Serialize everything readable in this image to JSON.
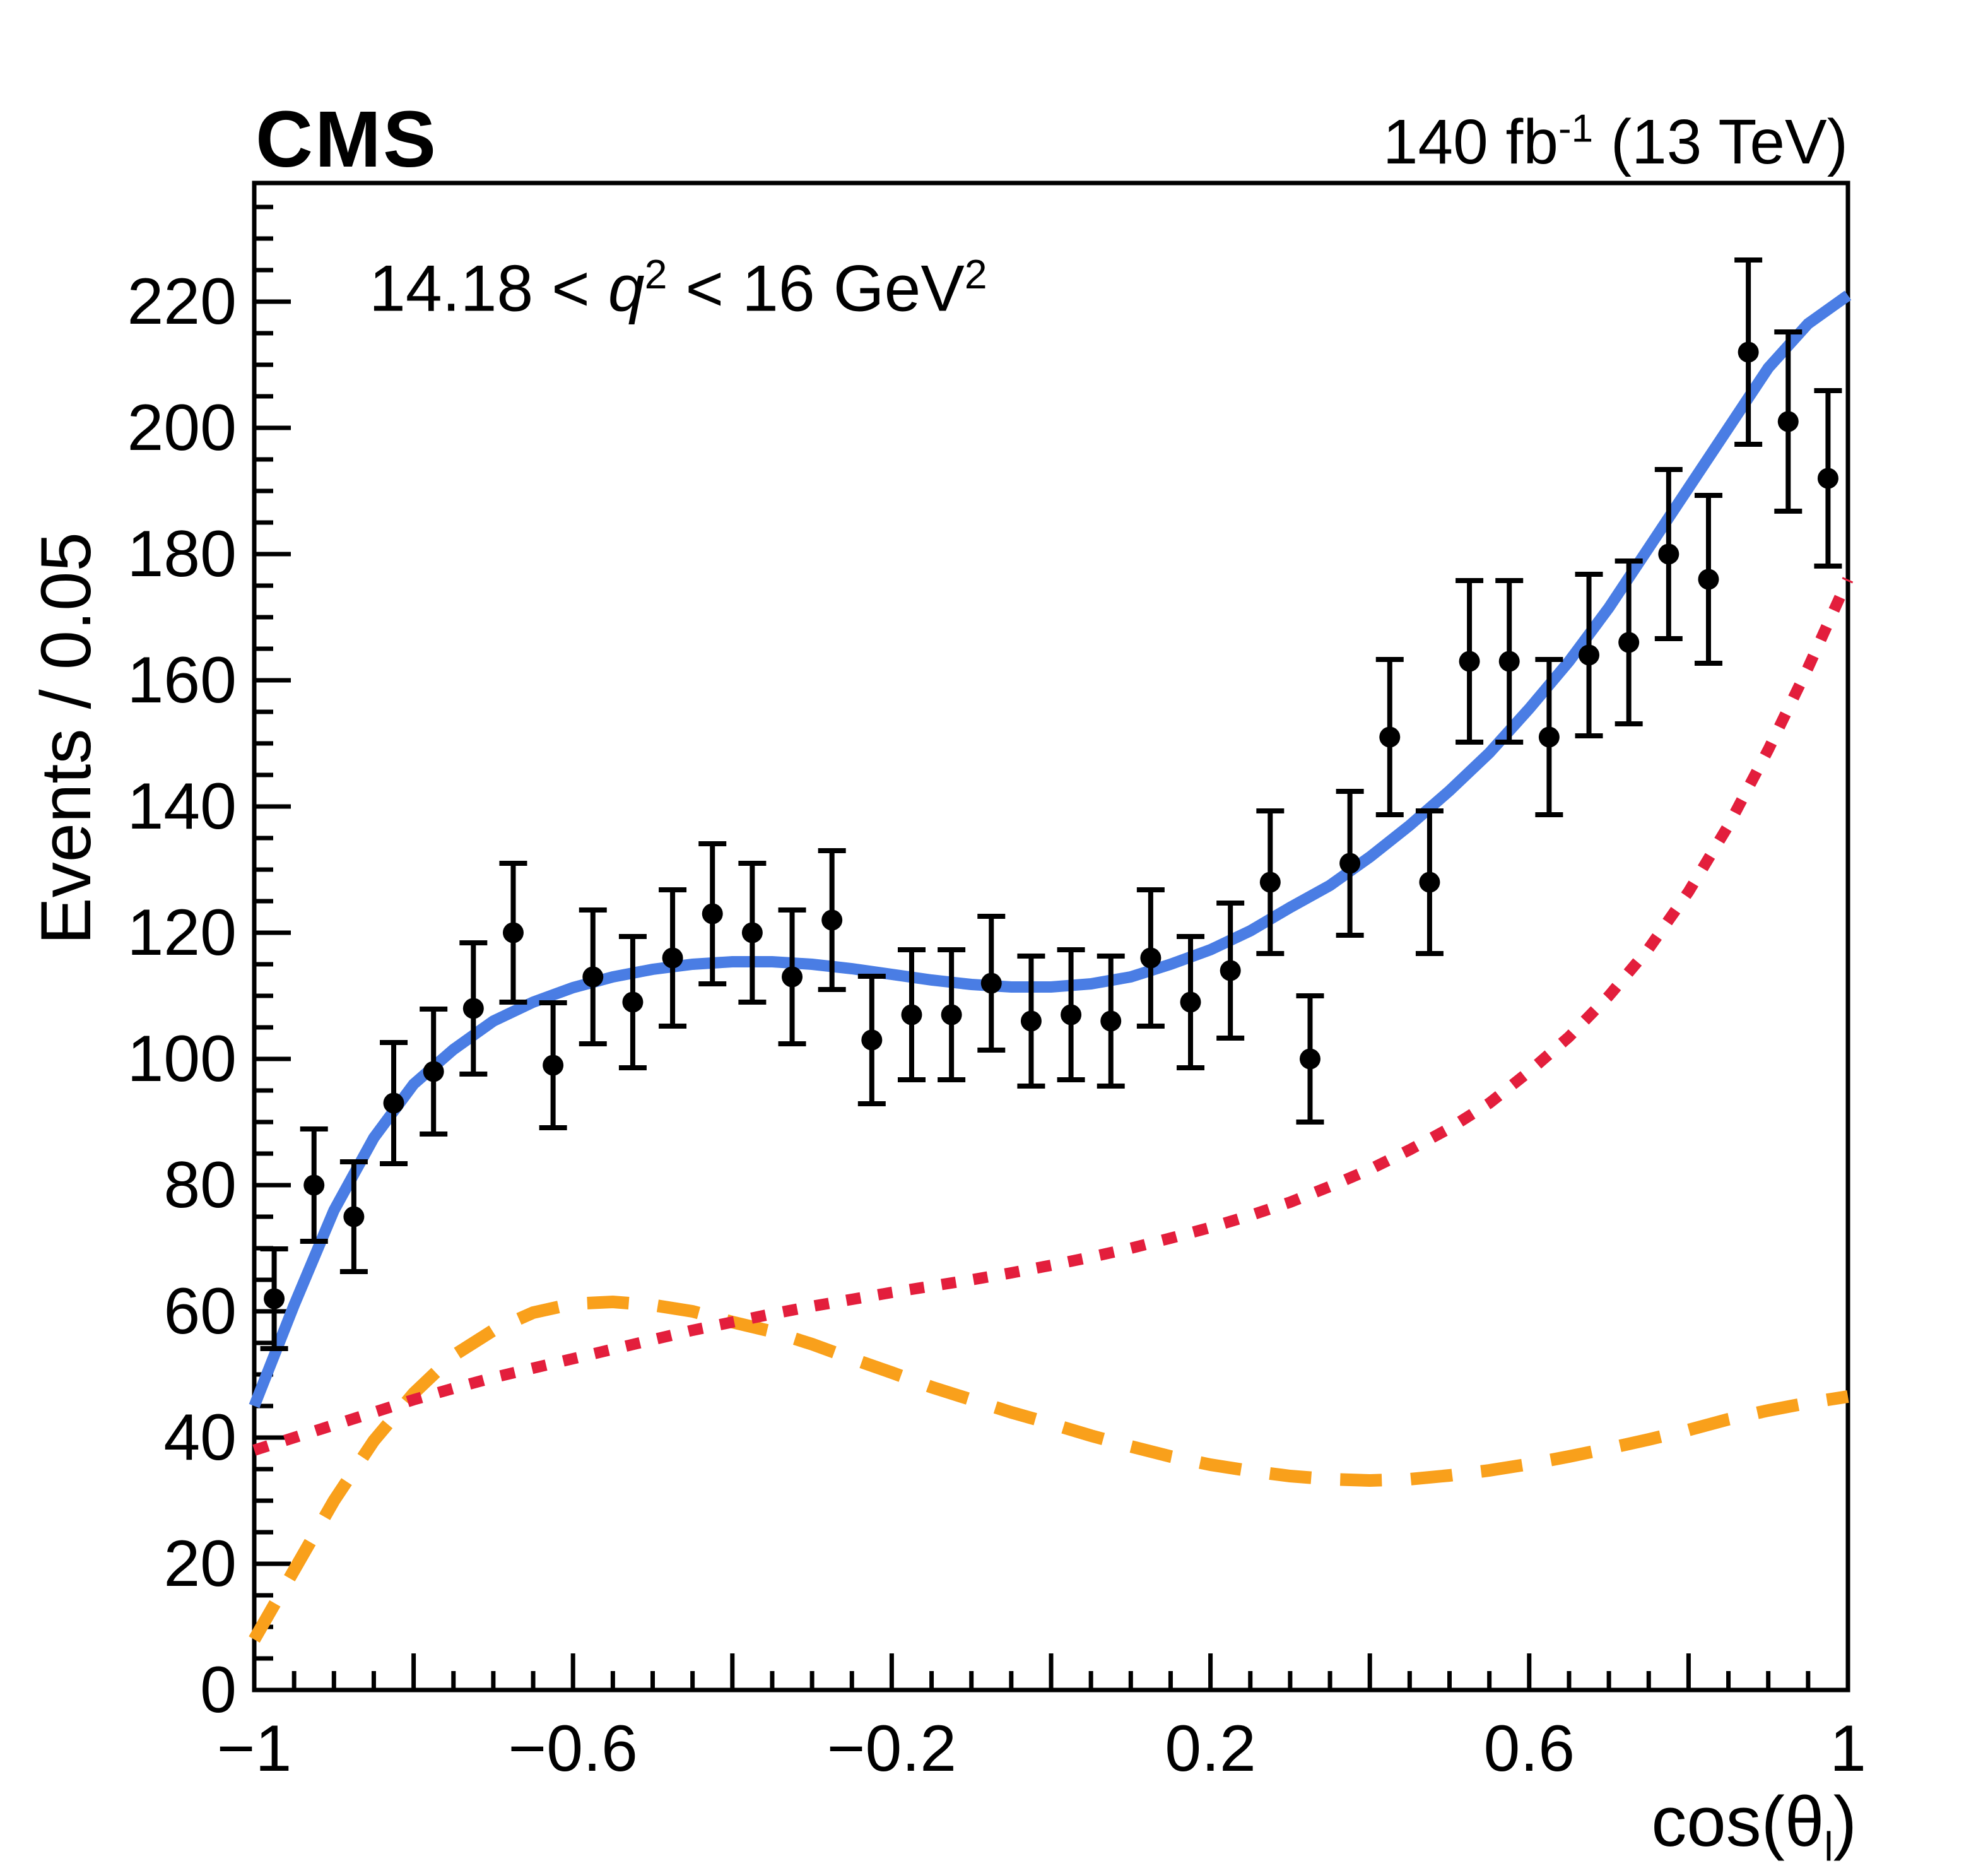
{
  "header": {
    "cms": "CMS",
    "lumi_prefix": "140 fb",
    "lumi_sup": "-1",
    "lumi_suffix": " (13 TeV)"
  },
  "annotation": {
    "pre": "14.18 < ",
    "q": "q",
    "q_sup": "2",
    "mid": " < 16 GeV",
    "gev_sup": "2"
  },
  "axes": {
    "y_title": "Events / 0.05",
    "x_title_pre": "cos(θ",
    "x_title_sub": "l",
    "x_title_post": ")"
  },
  "chart_data": {
    "type": "scatter",
    "title": "",
    "xlabel": "cos(theta_l)",
    "ylabel": "Events / 0.05",
    "xlim": [
      -1,
      1
    ],
    "ylim": [
      0,
      238.8
    ],
    "grid": false,
    "legend": "none",
    "bin_width": 0.05,
    "x_ticks": {
      "major_step": 0.2,
      "minor_step": 0.05,
      "label_values": [
        -1,
        -0.6,
        -0.2,
        0.2,
        0.6,
        1
      ],
      "labels": [
        "−1",
        "−0.6",
        "−0.2",
        "0.2",
        "0.6",
        "1"
      ]
    },
    "y_ticks": {
      "major_step": 20,
      "minor_step": 5,
      "label_values": [
        0,
        20,
        40,
        60,
        80,
        100,
        120,
        140,
        160,
        180,
        200,
        220
      ],
      "labels": [
        "0",
        "20",
        "40",
        "60",
        "80",
        "100",
        "120",
        "140",
        "160",
        "180",
        "200",
        "220"
      ]
    },
    "points": {
      "name": "data",
      "color": "#000000",
      "x": [
        -0.975,
        -0.925,
        -0.875,
        -0.825,
        -0.775,
        -0.725,
        -0.675,
        -0.625,
        -0.575,
        -0.525,
        -0.475,
        -0.425,
        -0.375,
        -0.325,
        -0.275,
        -0.225,
        -0.175,
        -0.125,
        -0.075,
        -0.025,
        0.025,
        0.075,
        0.125,
        0.175,
        0.225,
        0.275,
        0.325,
        0.375,
        0.425,
        0.475,
        0.525,
        0.575,
        0.625,
        0.675,
        0.725,
        0.775,
        0.825,
        0.875,
        0.925,
        0.975
      ],
      "y": [
        62,
        80,
        75,
        93,
        98,
        108,
        120,
        99,
        113,
        109,
        116,
        123,
        120,
        113,
        122,
        103,
        107,
        107,
        112,
        106,
        107,
        106,
        116,
        109,
        114,
        128,
        100,
        131,
        151,
        128,
        163,
        163,
        151,
        164,
        166,
        180,
        176,
        212,
        201,
        192
      ],
      "yerr": [
        7.9,
        8.9,
        8.7,
        9.6,
        9.9,
        10.4,
        11.0,
        9.9,
        10.6,
        10.4,
        10.8,
        11.1,
        11.0,
        10.6,
        11.0,
        10.1,
        10.3,
        10.3,
        10.6,
        10.3,
        10.3,
        10.3,
        10.8,
        10.4,
        10.7,
        11.3,
        10.0,
        11.4,
        12.3,
        11.3,
        12.8,
        12.8,
        12.3,
        12.8,
        12.9,
        13.4,
        13.3,
        14.6,
        14.2,
        13.9
      ]
    },
    "curves": [
      {
        "name": "background-component",
        "style": "dashed",
        "color": "#f9a01b",
        "x": [
          -1,
          -0.95,
          -0.9,
          -0.85,
          -0.8,
          -0.75,
          -0.7,
          -0.65,
          -0.6,
          -0.55,
          -0.5,
          -0.45,
          -0.4,
          -0.35,
          -0.3,
          -0.25,
          -0.2,
          -0.15,
          -0.1,
          -0.05,
          0,
          0.05,
          0.1,
          0.15,
          0.2,
          0.25,
          0.3,
          0.35,
          0.4,
          0.45,
          0.5,
          0.55,
          0.6,
          0.65,
          0.7,
          0.75,
          0.8,
          0.85,
          0.9,
          0.95,
          1
        ],
        "y": [
          8,
          19,
          30,
          39.5,
          47,
          53,
          57,
          59.8,
          61.2,
          61.5,
          61,
          60,
          58.3,
          56.8,
          54.8,
          52.5,
          50.3,
          48,
          46,
          44,
          42.2,
          40.3,
          38.6,
          37,
          35.7,
          34.7,
          33.9,
          33.4,
          33.2,
          33.4,
          34,
          34.8,
          35.8,
          37,
          38.3,
          39.7,
          41.2,
          42.9,
          44.3,
          45.5,
          46.5
        ]
      },
      {
        "name": "signal-component",
        "style": "dotted",
        "color": "#e31e3c",
        "x": [
          -1,
          -0.95,
          -0.9,
          -0.85,
          -0.8,
          -0.75,
          -0.7,
          -0.65,
          -0.6,
          -0.55,
          -0.5,
          -0.45,
          -0.4,
          -0.35,
          -0.3,
          -0.25,
          -0.2,
          -0.15,
          -0.1,
          -0.05,
          0,
          0.05,
          0.1,
          0.15,
          0.2,
          0.25,
          0.3,
          0.35,
          0.4,
          0.45,
          0.5,
          0.55,
          0.6,
          0.65,
          0.7,
          0.75,
          0.8,
          0.85,
          0.9,
          0.95,
          1
        ],
        "y": [
          38,
          40,
          42,
          44,
          46,
          47.8,
          49.5,
          51,
          52.5,
          54,
          55.5,
          57,
          58.3,
          59.6,
          60.8,
          61.9,
          63,
          64,
          65,
          66.1,
          67.3,
          68.6,
          70,
          71.6,
          73.3,
          75.2,
          77.3,
          79.8,
          82.5,
          85.6,
          89,
          93,
          98,
          103.5,
          110,
          117.5,
          126.5,
          137,
          149,
          162,
          176
        ]
      },
      {
        "name": "total-fit",
        "style": "solid",
        "color": "#4a7de4",
        "x": [
          -1,
          -0.95,
          -0.9,
          -0.85,
          -0.8,
          -0.75,
          -0.7,
          -0.65,
          -0.6,
          -0.55,
          -0.5,
          -0.45,
          -0.4,
          -0.35,
          -0.3,
          -0.25,
          -0.2,
          -0.15,
          -0.1,
          -0.05,
          0,
          0.05,
          0.1,
          0.15,
          0.2,
          0.25,
          0.3,
          0.35,
          0.4,
          0.45,
          0.5,
          0.55,
          0.6,
          0.65,
          0.7,
          0.75,
          0.8,
          0.85,
          0.9,
          0.95,
          1
        ],
        "y": [
          45,
          61,
          76,
          87.5,
          96,
          101.5,
          106,
          109,
          111.3,
          113,
          114.2,
          115,
          115.4,
          115.4,
          115,
          114.3,
          113.4,
          112.5,
          111.8,
          111.4,
          111.4,
          111.9,
          113,
          115,
          117.3,
          120.3,
          124,
          127.5,
          132,
          137,
          142.5,
          148.5,
          155.5,
          163,
          171.5,
          181,
          190.5,
          200,
          209.5,
          216.5,
          221
        ]
      }
    ]
  }
}
